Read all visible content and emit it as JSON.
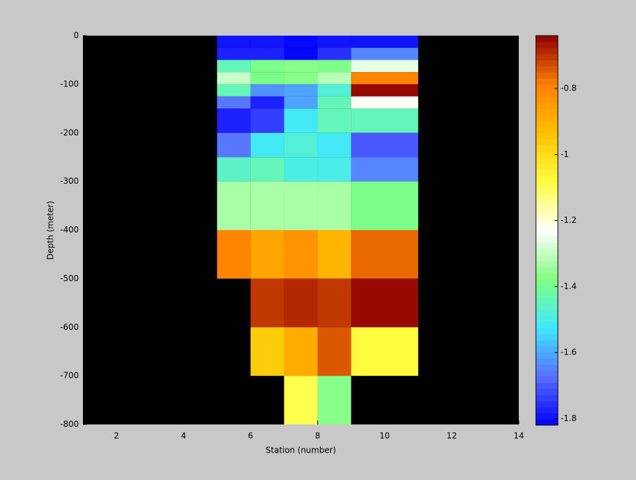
{
  "chart_data": {
    "type": "heatmap",
    "x_label": "Station (number)",
    "y_label": "Depth (meter)",
    "x_edges": [
      5,
      6,
      7,
      8,
      9,
      11
    ],
    "y_edges": [
      0,
      -25,
      -50,
      -75,
      -100,
      -125,
      -150,
      -200,
      -250,
      -300,
      -400,
      -500,
      -600,
      -700,
      -800
    ],
    "values": [
      [
        -1.8,
        -1.8,
        -1.82,
        -1.8,
        -1.8
      ],
      [
        -1.78,
        -1.77,
        -1.81,
        -1.76,
        -1.64
      ],
      [
        -1.45,
        -1.38,
        -1.36,
        -1.38,
        -1.25
      ],
      [
        -1.3,
        -1.38,
        -1.36,
        -1.31,
        -0.79
      ],
      [
        -1.45,
        -1.63,
        -1.6,
        -1.48,
        -0.65
      ],
      [
        -1.66,
        -1.77,
        -1.6,
        -1.45,
        -1.22
      ],
      [
        -1.78,
        -1.74,
        -1.52,
        -1.45,
        -1.44
      ],
      [
        -1.66,
        -1.52,
        -1.47,
        -1.52,
        -1.7
      ],
      [
        -1.46,
        -1.44,
        -1.5,
        -1.5,
        -1.65
      ],
      [
        -1.34,
        -1.34,
        -1.34,
        -1.34,
        -1.38
      ],
      [
        -0.8,
        -0.87,
        -0.84,
        -0.91,
        -0.76
      ],
      [
        null,
        -0.7,
        -0.68,
        -0.7,
        -0.65
      ],
      [
        null,
        -0.97,
        -0.89,
        -0.74,
        -1.08
      ],
      [
        null,
        null,
        -1.1,
        -1.36,
        null
      ]
    ],
    "xlim": [
      1,
      14
    ],
    "xticks": [
      2,
      4,
      6,
      8,
      10,
      12,
      14
    ],
    "ylim": [
      -800,
      0
    ],
    "yticks": [
      0,
      -100,
      -200,
      -300,
      -400,
      -500,
      -600,
      -700,
      -800
    ],
    "clim": [
      -1.82,
      -0.64
    ],
    "cticks": [
      -0.8,
      -1,
      -1.2,
      -1.4,
      -1.6,
      -1.8
    ],
    "colormap": [
      "#0000ff",
      "#5a6eff",
      "#40e8ff",
      "#80ff80",
      "#ffffff",
      "#ffff40",
      "#ffc000",
      "#ff8000",
      "#900000"
    ],
    "colormap_levels": 64,
    "background": "#000000"
  }
}
